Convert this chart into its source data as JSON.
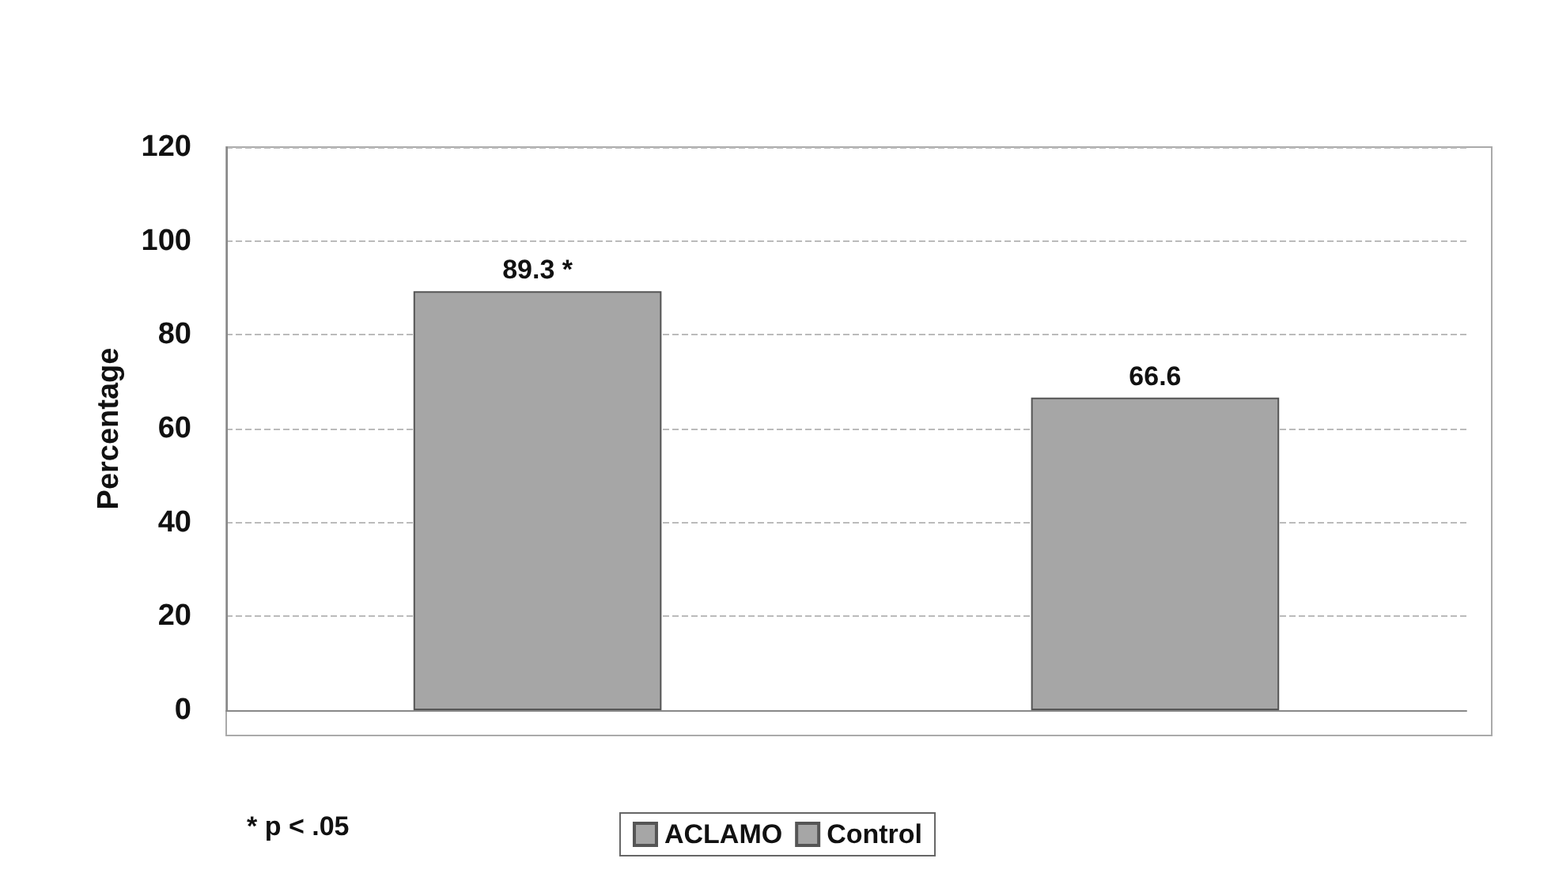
{
  "chart_data": {
    "type": "bar",
    "ylabel": "Percentage",
    "categories": [
      null
    ],
    "series": [
      {
        "name": "ACLAMO",
        "color": "#a6a6a6",
        "values": [
          89.3
        ],
        "value_labels": [
          "89.3 *"
        ]
      },
      {
        "name": "Control",
        "color": "#a6a6a6",
        "values": [
          66.6
        ],
        "value_labels": [
          "66.6"
        ]
      }
    ],
    "ylim": [
      0,
      120
    ],
    "yticks": [
      0,
      20,
      40,
      60,
      80,
      100,
      120
    ],
    "grid": "y",
    "legend": "bottom",
    "annotations": [
      "* p < .05"
    ]
  }
}
